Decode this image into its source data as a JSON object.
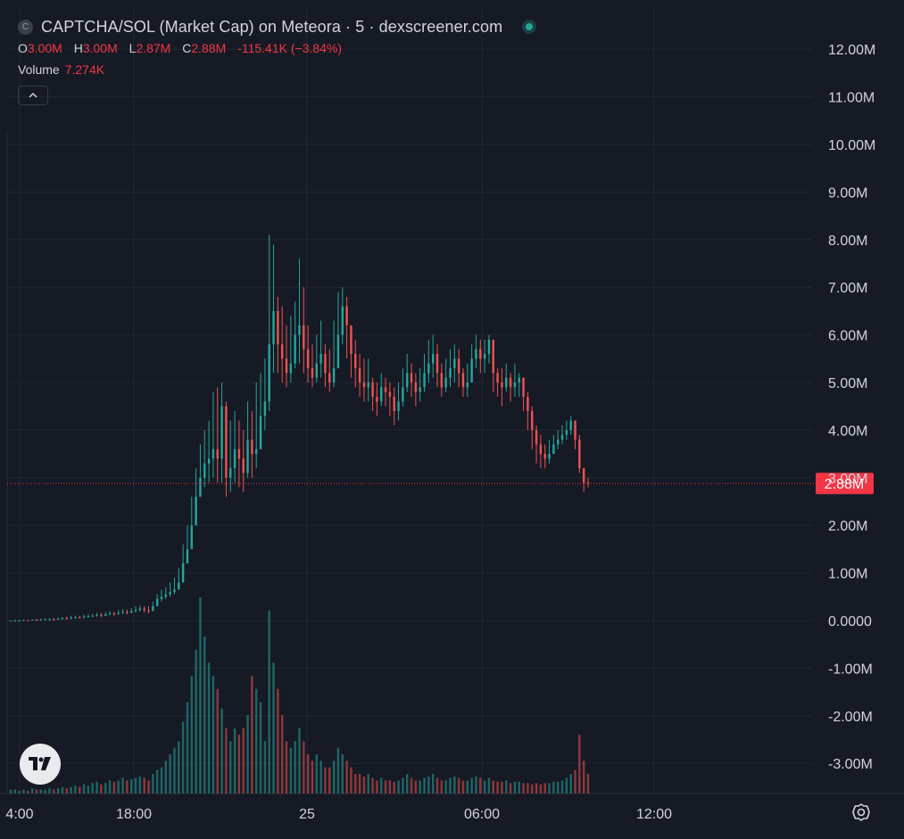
{
  "header": {
    "symbol_icon_letter": "C",
    "title": "CAPTCHA/SOL (Market Cap) on Meteora · 5 · dexscreener.com",
    "status_dot_color": "#26a69a",
    "ohlc": {
      "open_label": "O",
      "open_value": "3.00M",
      "high_label": "H",
      "high_value": "3.00M",
      "low_label": "L",
      "low_value": "2.87M",
      "close_label": "C",
      "close_value": "2.88M",
      "change": "-115.41K (−3.84%)"
    },
    "volume_label": "Volume",
    "volume_value": "7.274K",
    "collapse_icon": "chevron-up-icon"
  },
  "chart_data": {
    "type": "candlestick",
    "y_axis": {
      "ticks": [
        "12.00M",
        "11.00M",
        "10.00M",
        "9.00M",
        "8.00M",
        "7.00M",
        "6.00M",
        "5.00M",
        "4.00M",
        "3.00M",
        "2.00M",
        "1.00M",
        "0.0000",
        "-1.00M",
        "-2.00M",
        "-3.00M"
      ],
      "range_millions": [
        -3.6,
        12.6
      ]
    },
    "x_axis": {
      "ticks": [
        "4:00",
        "18:00",
        "25",
        "06:00",
        "12:00"
      ]
    },
    "last_price": {
      "label": "2.88M",
      "value_millions": 2.88
    },
    "colors": {
      "up": "#26a69a",
      "down": "#ef5350",
      "background": "#161a25",
      "grid": "#232733",
      "axis_text": "#d1d4dc"
    },
    "series": [
      {
        "name": "Market Cap",
        "note_units": "millions",
        "close": [
          0.0,
          0.0,
          0.0,
          0.01,
          0.0,
          0.02,
          0.01,
          0.02,
          0.03,
          0.03,
          0.02,
          0.04,
          0.05,
          0.04,
          0.06,
          0.07,
          0.06,
          0.08,
          0.09,
          0.1,
          0.12,
          0.1,
          0.13,
          0.15,
          0.14,
          0.16,
          0.18,
          0.17,
          0.2,
          0.22,
          0.25,
          0.22,
          0.2,
          0.3,
          0.45,
          0.5,
          0.55,
          0.6,
          0.65,
          0.8,
          1.2,
          1.5,
          2.0,
          2.6,
          3.0,
          3.3,
          3.4,
          3.6,
          3.4,
          4.5,
          3.0,
          3.2,
          3.6,
          3.4,
          3.1,
          3.8,
          3.5,
          3.6,
          4.3,
          4.6,
          5.8,
          6.5,
          5.8,
          5.5,
          5.2,
          5.4,
          6.0,
          6.2,
          5.7,
          5.3,
          5.1,
          5.4,
          5.6,
          5.2,
          5.0,
          5.3,
          6.0,
          6.6,
          6.2,
          5.6,
          5.3,
          5.0,
          4.9,
          5.0,
          4.7,
          4.6,
          4.9,
          4.8,
          4.7,
          4.4,
          4.6,
          4.9,
          5.2,
          5.0,
          4.8,
          4.9,
          5.2,
          5.4,
          5.6,
          5.2,
          4.9,
          5.1,
          5.3,
          5.5,
          5.2,
          4.9,
          5.0,
          5.5,
          5.7,
          5.5,
          5.6,
          5.9,
          5.2,
          5.0,
          4.9,
          5.1,
          4.9,
          5.0,
          5.1,
          4.7,
          4.4,
          4.0,
          3.7,
          3.5,
          3.4,
          3.5,
          3.7,
          3.8,
          3.9,
          4.0,
          4.2,
          3.8,
          3.2,
          2.9,
          2.88
        ],
        "high": [
          0.0,
          0.01,
          0.01,
          0.02,
          0.01,
          0.03,
          0.03,
          0.04,
          0.05,
          0.05,
          0.05,
          0.06,
          0.07,
          0.08,
          0.1,
          0.1,
          0.1,
          0.12,
          0.13,
          0.14,
          0.16,
          0.16,
          0.18,
          0.2,
          0.19,
          0.22,
          0.24,
          0.23,
          0.26,
          0.3,
          0.32,
          0.3,
          0.3,
          0.4,
          0.55,
          0.65,
          0.7,
          0.8,
          0.9,
          1.1,
          1.6,
          2.0,
          2.6,
          3.2,
          3.7,
          4.0,
          4.2,
          4.8,
          4.9,
          5.0,
          4.6,
          4.2,
          4.4,
          4.2,
          4.0,
          4.6,
          4.4,
          5.0,
          5.2,
          5.5,
          8.1,
          7.9,
          6.8,
          6.6,
          6.2,
          6.4,
          6.7,
          7.6,
          7.0,
          6.2,
          5.8,
          6.0,
          6.3,
          5.8,
          5.7,
          6.3,
          6.9,
          7.0,
          6.8,
          6.2,
          5.9,
          5.6,
          5.5,
          5.5,
          5.1,
          5.0,
          5.2,
          5.1,
          5.0,
          4.9,
          5.0,
          5.3,
          5.6,
          5.4,
          5.2,
          5.3,
          5.6,
          5.9,
          6.0,
          5.8,
          5.4,
          5.5,
          5.7,
          5.8,
          5.7,
          5.3,
          5.4,
          5.8,
          6.0,
          5.9,
          5.9,
          6.0,
          5.8,
          5.3,
          5.3,
          5.4,
          5.2,
          5.4,
          5.2,
          5.1,
          4.8,
          4.5,
          4.1,
          3.9,
          3.7,
          3.8,
          3.9,
          4.0,
          4.1,
          4.2,
          4.3,
          4.2,
          3.9,
          3.2,
          3.0
        ],
        "low": [
          -0.02,
          -0.02,
          -0.01,
          -0.01,
          -0.02,
          0.0,
          -0.01,
          0.0,
          0.01,
          0.0,
          0.0,
          0.02,
          0.02,
          0.02,
          0.03,
          0.04,
          0.04,
          0.05,
          0.06,
          0.07,
          0.08,
          0.07,
          0.1,
          0.11,
          0.1,
          0.12,
          0.14,
          0.13,
          0.15,
          0.17,
          0.19,
          0.17,
          0.15,
          0.2,
          0.35,
          0.4,
          0.45,
          0.5,
          0.55,
          0.7,
          1.0,
          1.3,
          1.8,
          2.2,
          2.6,
          2.8,
          2.9,
          3.0,
          2.9,
          2.9,
          2.6,
          2.7,
          2.9,
          2.8,
          2.7,
          3.0,
          3.0,
          3.2,
          3.6,
          4.0,
          4.4,
          5.2,
          5.2,
          5.0,
          4.9,
          5.0,
          5.3,
          5.4,
          5.2,
          5.0,
          4.9,
          5.0,
          5.1,
          4.9,
          4.8,
          4.9,
          5.4,
          5.8,
          5.5,
          5.1,
          4.9,
          4.7,
          4.6,
          4.6,
          4.4,
          4.3,
          4.5,
          4.5,
          4.3,
          4.1,
          4.2,
          4.5,
          4.8,
          4.7,
          4.5,
          4.6,
          4.8,
          5.0,
          5.1,
          4.9,
          4.7,
          4.8,
          4.9,
          5.0,
          4.9,
          4.7,
          4.7,
          5.0,
          5.3,
          5.2,
          5.2,
          5.4,
          4.8,
          4.7,
          4.5,
          4.8,
          4.6,
          4.7,
          4.7,
          4.4,
          4.0,
          3.6,
          3.3,
          3.2,
          3.2,
          3.3,
          3.5,
          3.6,
          3.7,
          3.8,
          3.9,
          3.6,
          3.1,
          2.7,
          2.8
        ]
      }
    ],
    "volume": [
      0.3,
      0.3,
      0.2,
      0.3,
      0.2,
      0.4,
      0.3,
      0.3,
      0.3,
      0.4,
      0.3,
      0.4,
      0.5,
      0.4,
      0.5,
      0.6,
      0.5,
      0.7,
      0.6,
      0.8,
      0.9,
      0.7,
      0.8,
      1.0,
      0.9,
      1.0,
      1.2,
      1.0,
      1.1,
      1.2,
      1.3,
      1.2,
      1.0,
      1.5,
      1.8,
      2.0,
      2.5,
      3.0,
      3.5,
      4.0,
      5.5,
      7.0,
      9.0,
      11.0,
      15.0,
      12.0,
      10.0,
      9.0,
      8.0,
      6.5,
      5.0,
      4.0,
      5.0,
      4.5,
      5.0,
      6.0,
      9.0,
      8.0,
      7.0,
      4.0,
      14.0,
      10.0,
      8.0,
      6.0,
      4.0,
      3.5,
      4.0,
      5.0,
      4.0,
      3.0,
      2.5,
      3.0,
      2.5,
      2.0,
      2.0,
      2.5,
      3.5,
      3.0,
      2.5,
      2.0,
      1.5,
      1.5,
      1.3,
      1.5,
      1.2,
      1.0,
      1.2,
      1.0,
      1.0,
      0.9,
      1.0,
      1.2,
      1.5,
      1.2,
      1.0,
      1.0,
      1.2,
      1.3,
      1.5,
      1.2,
      1.0,
      1.0,
      1.2,
      1.3,
      1.2,
      1.0,
      1.0,
      1.2,
      1.3,
      1.2,
      1.0,
      1.2,
      1.0,
      0.9,
      0.9,
      1.0,
      0.8,
      0.9,
      0.9,
      0.8,
      0.8,
      0.7,
      0.8,
      0.7,
      0.8,
      0.8,
      0.9,
      0.9,
      1.0,
      1.2,
      1.5,
      1.8,
      4.5,
      2.5,
      1.5
    ]
  }
}
